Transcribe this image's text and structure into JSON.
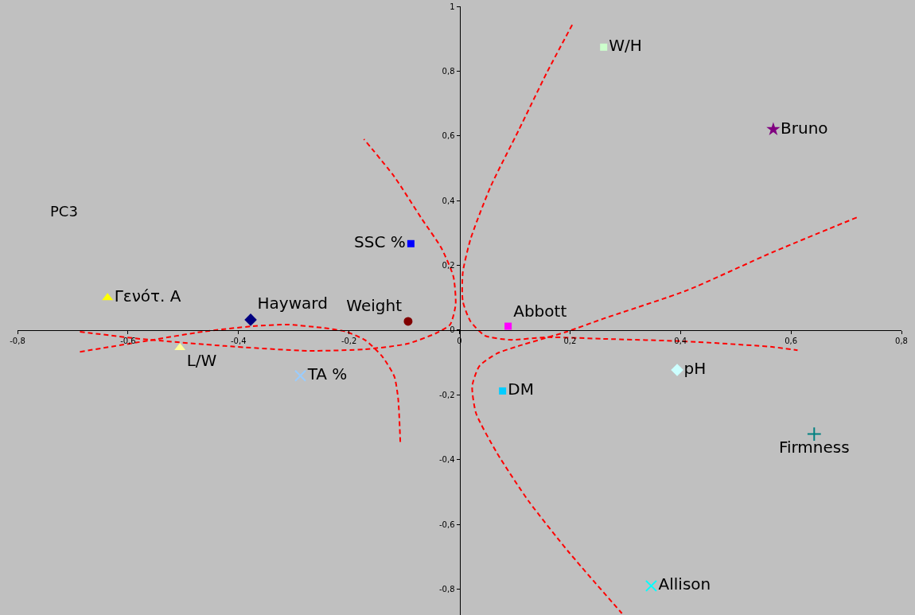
{
  "chart_data": {
    "type": "scatter",
    "ylabel": "PC3",
    "xlim": [
      -0.8,
      0.8
    ],
    "ylim": [
      -0.88,
      1
    ],
    "xticks": [
      {
        "value": -0.8,
        "label": "-0,8"
      },
      {
        "value": -0.6,
        "label": "-0,6"
      },
      {
        "value": -0.4,
        "label": "-0,4"
      },
      {
        "value": -0.2,
        "label": "-0,2"
      },
      0,
      {
        "value": 0.2,
        "label": "0,2"
      },
      {
        "value": 0.4,
        "label": "0,4"
      },
      {
        "value": 0.6,
        "label": "0,6"
      },
      {
        "value": 0.8,
        "label": "0,8"
      }
    ],
    "yticks": [
      {
        "value": -0.8,
        "label": "-0,8"
      },
      {
        "value": -0.6,
        "label": "-0,6"
      },
      {
        "value": -0.4,
        "label": "-0,4"
      },
      {
        "value": -0.2,
        "label": "-0,2"
      },
      0,
      {
        "value": 0.2,
        "label": "0,2"
      },
      {
        "value": 0.4,
        "label": "0,4"
      },
      {
        "value": 0.6,
        "label": "0,6"
      },
      {
        "value": 0.8,
        "label": "0,8"
      },
      1
    ],
    "grid": false,
    "legend": false,
    "series": [
      {
        "name": "Γενότ. Α",
        "color": "#ffff00",
        "marker": "triangle",
        "x": [
          -0.637
        ],
        "values": [
          0.1
        ]
      },
      {
        "name": "L/W",
        "color": "#ffff99",
        "marker": "triangle",
        "x": [
          -0.506
        ],
        "values": [
          -0.054
        ]
      },
      {
        "name": "Hayward",
        "color": "#000080",
        "marker": "diamond",
        "x": [
          -0.378
        ],
        "values": [
          0.032
        ]
      },
      {
        "name": "Weight",
        "color": "#800000",
        "marker": "circle",
        "x": [
          -0.093
        ],
        "values": [
          0.027
        ]
      },
      {
        "name": "SSC %",
        "color": "#0000ff",
        "marker": "square",
        "x": [
          -0.088
        ],
        "values": [
          0.267
        ]
      },
      {
        "name": "Abbott",
        "color": "#ff00ff",
        "marker": "square",
        "x": [
          0.088
        ],
        "values": [
          0.012
        ]
      },
      {
        "name": "W/H",
        "color": "#ccffcc",
        "marker": "square",
        "x": [
          0.261
        ],
        "values": [
          0.874
        ]
      },
      {
        "name": "Bruno",
        "color": "#800080",
        "marker": "star",
        "x": [
          0.568
        ],
        "values": [
          0.62
        ]
      },
      {
        "name": "pH",
        "color": "#ccffff",
        "marker": "diamond",
        "x": [
          0.394
        ],
        "values": [
          -0.123
        ]
      },
      {
        "name": "DM",
        "color": "#00ccff",
        "marker": "square",
        "x": [
          0.078
        ],
        "values": [
          -0.188
        ]
      },
      {
        "name": "Firmness",
        "color": "#008080",
        "marker": "cross",
        "x": [
          0.642
        ],
        "values": [
          -0.321
        ]
      },
      {
        "name": "TA %",
        "color": "#99ccff",
        "marker": "x",
        "x": [
          -0.288
        ],
        "values": [
          -0.141
        ]
      },
      {
        "name": "Allison",
        "color": "#00ffff",
        "marker": "x",
        "x": [
          0.347
        ],
        "values": [
          -0.79
        ]
      },
      {
        "type": "line",
        "color": "#ff0000",
        "line_style": "dashed",
        "marker": "none",
        "x": [
          -0.687,
          -0.562,
          -0.465,
          -0.374,
          -0.312,
          -0.247,
          -0.205,
          -0.17,
          -0.14,
          -0.118,
          -0.111,
          -0.107
        ],
        "values": [
          -0.067,
          -0.032,
          -0.005,
          0.012,
          0.017,
          0.007,
          -0.005,
          -0.032,
          -0.081,
          -0.143,
          -0.212,
          -0.353
        ]
      },
      {
        "type": "line",
        "color": "#ff0000",
        "line_style": "dashed",
        "marker": "none",
        "x": [
          -0.687,
          -0.578,
          -0.425,
          -0.272,
          -0.17,
          -0.094,
          -0.043,
          -0.017,
          -0.007,
          -0.011,
          -0.033,
          -0.068,
          -0.118,
          -0.173
        ],
        "values": [
          -0.005,
          -0.027,
          -0.049,
          -0.064,
          -0.059,
          -0.042,
          -0.01,
          0.017,
          0.079,
          0.165,
          0.254,
          0.343,
          0.474,
          0.59
        ]
      },
      {
        "type": "line",
        "color": "#ff0000",
        "line_style": "dashed",
        "marker": "none",
        "x": [
          0.204,
          0.158,
          0.107,
          0.056,
          0.02,
          0.006,
          0.006,
          0.02,
          0.046,
          0.091,
          0.158,
          0.26,
          0.412,
          0.566,
          0.612
        ],
        "values": [
          0.943,
          0.795,
          0.617,
          0.442,
          0.281,
          0.178,
          0.089,
          0.027,
          -0.017,
          -0.03,
          -0.022,
          -0.027,
          -0.035,
          -0.052,
          -0.062
        ]
      },
      {
        "type": "line",
        "color": "#ff0000",
        "line_style": "dashed",
        "marker": "none",
        "x": [
          0.719,
          0.566,
          0.412,
          0.26,
          0.194,
          0.107,
          0.068,
          0.036,
          0.023,
          0.03,
          0.068,
          0.125,
          0.197,
          0.294
        ],
        "values": [
          0.348,
          0.24,
          0.123,
          0.035,
          -0.005,
          -0.049,
          -0.072,
          -0.111,
          -0.173,
          -0.257,
          -0.38,
          -0.528,
          -0.684,
          -0.875
        ]
      }
    ]
  }
}
